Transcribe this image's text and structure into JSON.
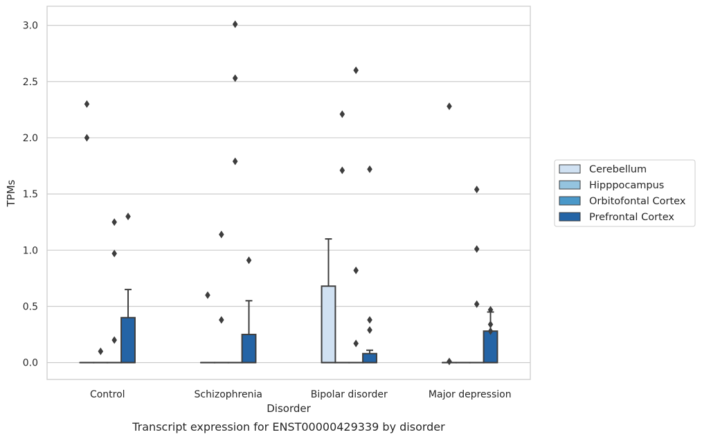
{
  "chart_data": {
    "type": "box",
    "title": "",
    "caption": "Transcript expression for ENST00000429339 by disorder",
    "xlabel": "Disorder",
    "ylabel": "TPMs",
    "ylim": [
      -0.15,
      3.17
    ],
    "yticks": [
      0.0,
      0.5,
      1.0,
      1.5,
      2.0,
      2.5,
      3.0
    ],
    "ytick_labels": [
      "0.0",
      "0.5",
      "1.0",
      "1.5",
      "2.0",
      "2.5",
      "3.0"
    ],
    "grid": "horizontal",
    "legend_position": "right",
    "categories": [
      "Control",
      "Schizophrenia",
      "Bipolar disorder",
      "Major depression"
    ],
    "series": [
      {
        "name": "Cerebellum",
        "color": "#d0e1f2",
        "boxes": [
          {
            "q1": 0,
            "median": 0,
            "q3": 0,
            "whisker_high": 0,
            "outliers": [
              2.3,
              2.0
            ]
          },
          {
            "q1": 0,
            "median": 0,
            "q3": 0,
            "whisker_high": 0,
            "outliers": [
              0.6
            ]
          },
          {
            "q1": 0,
            "median": 0,
            "q3": 0.68,
            "whisker_high": 1.1,
            "outliers": []
          },
          {
            "q1": 0,
            "median": 0,
            "q3": 0,
            "whisker_high": 0,
            "outliers": [
              2.28,
              0.01
            ]
          }
        ]
      },
      {
        "name": "Hipppocampus",
        "color": "#94c4df",
        "boxes": [
          {
            "q1": 0,
            "median": 0,
            "q3": 0,
            "whisker_high": 0,
            "outliers": [
              0.1
            ]
          },
          {
            "q1": 0,
            "median": 0,
            "q3": 0,
            "whisker_high": 0,
            "outliers": [
              1.14,
              0.38
            ]
          },
          {
            "q1": 0,
            "median": 0,
            "q3": 0,
            "whisker_high": 0,
            "outliers": [
              2.21,
              1.71
            ]
          },
          {
            "q1": 0,
            "median": 0,
            "q3": 0,
            "whisker_high": 0,
            "outliers": []
          }
        ]
      },
      {
        "name": "Orbitofontal Cortex",
        "color": "#4a98c9",
        "boxes": [
          {
            "q1": 0,
            "median": 0,
            "q3": 0,
            "whisker_high": 0,
            "outliers": [
              1.25,
              0.97,
              0.2
            ]
          },
          {
            "q1": 0,
            "median": 0,
            "q3": 0,
            "whisker_high": 0,
            "outliers": [
              3.01,
              2.53,
              1.79
            ]
          },
          {
            "q1": 0,
            "median": 0,
            "q3": 0,
            "whisker_high": 0,
            "outliers": [
              2.6,
              0.82,
              0.17
            ]
          },
          {
            "q1": 0,
            "median": 0,
            "q3": 0,
            "whisker_high": 0,
            "outliers": [
              1.54,
              1.01,
              0.52
            ]
          }
        ]
      },
      {
        "name": "Prefrontal Cortex",
        "color": "#2464a6",
        "boxes": [
          {
            "q1": 0,
            "median": 0,
            "q3": 0.4,
            "whisker_high": 0.65,
            "outliers": [
              1.3
            ]
          },
          {
            "q1": 0,
            "median": 0,
            "q3": 0.25,
            "whisker_high": 0.55,
            "outliers": [
              0.91
            ]
          },
          {
            "q1": 0,
            "median": 0,
            "q3": 0.08,
            "whisker_high": 0.11,
            "outliers": [
              1.72,
              0.38,
              0.29
            ]
          },
          {
            "q1": 0,
            "median": 0,
            "q3": 0.28,
            "whisker_high": 0.45,
            "outliers": [
              0.47,
              0.34,
              0.28
            ]
          }
        ]
      }
    ]
  }
}
